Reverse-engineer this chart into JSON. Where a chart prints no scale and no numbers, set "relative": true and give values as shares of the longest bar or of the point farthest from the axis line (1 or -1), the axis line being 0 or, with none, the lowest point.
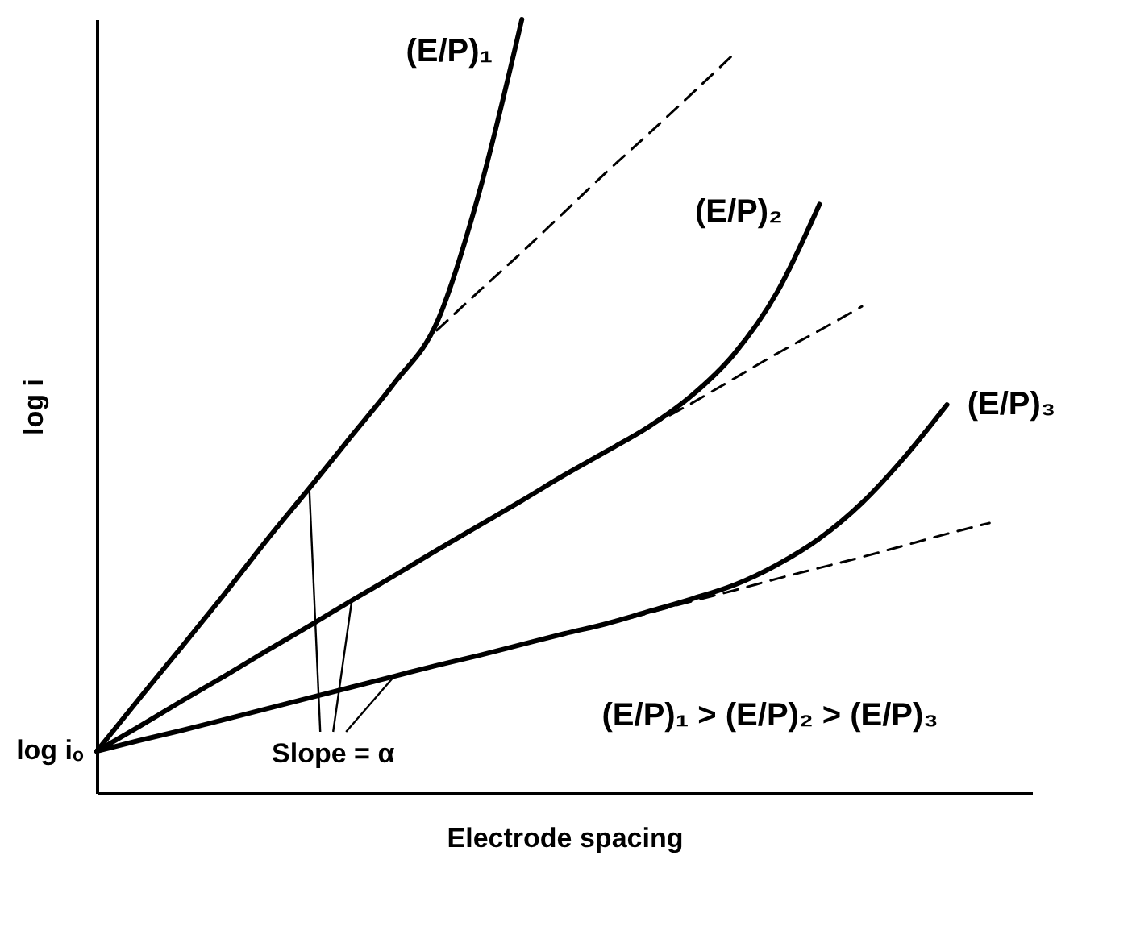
{
  "chart_data": {
    "type": "line",
    "relative": true,
    "xlabel": "Electrode spacing",
    "ylabel": "log i",
    "categories": [
      null,
      null,
      null,
      null,
      null,
      null,
      null,
      null,
      null,
      null,
      null,
      null,
      null,
      null,
      null,
      null,
      null,
      null,
      null,
      null,
      null,
      null,
      null
    ],
    "series": [
      {
        "name": "(E/P)₁",
        "color": "#000000",
        "line_style": "solid",
        "values": [
          0.054,
          0.122,
          0.189,
          0.257,
          0.327,
          0.394,
          0.462,
          0.53,
          0.608,
          0.777,
          1.0,
          null,
          null,
          null,
          null,
          null,
          null,
          null,
          null,
          null,
          null,
          null,
          null
        ]
      },
      {
        "color": "#000000",
        "line_style": "dashed",
        "values": [
          null,
          null,
          null,
          null,
          null,
          null,
          null,
          null,
          0.598,
          0.649,
          0.699,
          0.751,
          0.803,
          0.853,
          0.904,
          0.956,
          null,
          null,
          null,
          null,
          null,
          null,
          null
        ]
      },
      {
        "name": "(E/P)₂",
        "color": "#000000",
        "line_style": "solid",
        "values": [
          0.054,
          0.086,
          0.119,
          0.151,
          0.184,
          0.216,
          0.249,
          0.281,
          0.314,
          0.346,
          0.378,
          0.411,
          0.442,
          0.474,
          0.514,
          0.568,
          0.647,
          0.761,
          null,
          null,
          null,
          null,
          null
        ]
      },
      {
        "color": "#000000",
        "line_style": "dashed",
        "values": [
          null,
          null,
          null,
          null,
          null,
          null,
          null,
          null,
          null,
          null,
          null,
          null,
          0.442,
          0.474,
          0.504,
          0.536,
          0.568,
          0.598,
          0.629,
          null,
          null,
          null,
          null
        ]
      },
      {
        "name": "(E/P)₃",
        "color": "#000000",
        "line_style": "solid",
        "values": [
          0.054,
          0.068,
          0.081,
          0.095,
          0.109,
          0.123,
          0.137,
          0.151,
          0.165,
          0.178,
          0.192,
          0.206,
          0.219,
          0.235,
          0.251,
          0.269,
          0.295,
          0.329,
          0.375,
          0.434,
          0.502,
          null,
          null
        ]
      },
      {
        "color": "#000000",
        "line_style": "dashed",
        "values": [
          null,
          null,
          null,
          null,
          null,
          null,
          null,
          null,
          null,
          null,
          null,
          null,
          0.219,
          0.233,
          0.248,
          0.262,
          0.277,
          0.291,
          0.305,
          0.32,
          0.335,
          0.349,
          null
        ]
      }
    ],
    "annotations": [
      "log iₒ",
      "Slope = α",
      "(E/P)₁ > (E/P)₂ > (E/P)₃"
    ],
    "grid": false
  }
}
